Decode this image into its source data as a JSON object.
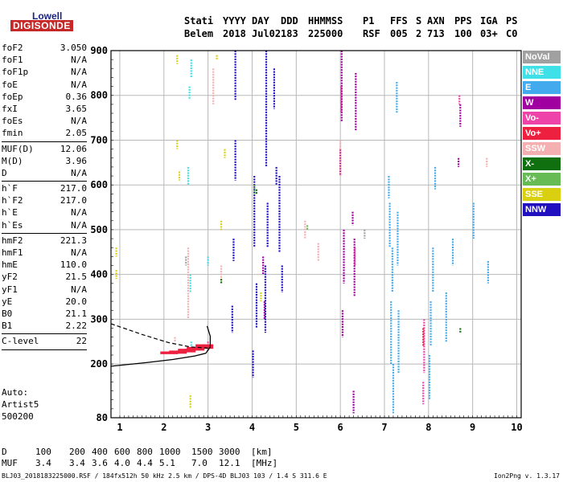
{
  "logo": {
    "line1": "Lowell",
    "line2": "DIGISONDE"
  },
  "header": {
    "labels": [
      "Stati",
      "YYYY",
      "DAY",
      "DDD",
      "HHMMSS",
      "P1",
      "FFS",
      "S",
      "AXN",
      "PPS",
      "IGA",
      "PS"
    ],
    "values": [
      "Belem",
      "2018",
      "Jul02",
      "183",
      "225000",
      "RSF",
      "005",
      "2",
      "713",
      "100",
      "03+",
      "C0"
    ]
  },
  "params": [
    {
      "name": "foF2",
      "value": "3.050"
    },
    {
      "name": "foF1",
      "value": "N/A"
    },
    {
      "name": "foF1p",
      "value": "N/A"
    },
    {
      "name": "foE",
      "value": "N/A"
    },
    {
      "name": "foEp",
      "value": "0.36"
    },
    {
      "name": "fxI",
      "value": "3.65"
    },
    {
      "name": "foEs",
      "value": "N/A"
    },
    {
      "name": "fmin",
      "value": "2.05"
    },
    {
      "sep": true
    },
    {
      "name": "MUF(D)",
      "value": "12.06"
    },
    {
      "name": "M(D)",
      "value": "3.96"
    },
    {
      "name": "D",
      "value": "N/A"
    },
    {
      "sep": true
    },
    {
      "name": "h`F",
      "value": "217.0"
    },
    {
      "name": "h`F2",
      "value": "217.0"
    },
    {
      "name": "h`E",
      "value": "N/A"
    },
    {
      "name": "h`Es",
      "value": "N/A"
    },
    {
      "sep": true
    },
    {
      "name": "hmF2",
      "value": "221.3"
    },
    {
      "name": "hmF1",
      "value": "N/A"
    },
    {
      "name": "hmE",
      "value": "110.0"
    },
    {
      "name": "yF2",
      "value": "21.5"
    },
    {
      "name": "yF1",
      "value": "N/A"
    },
    {
      "name": "yE",
      "value": "20.0"
    },
    {
      "name": "B0",
      "value": "21.1"
    },
    {
      "name": "B1",
      "value": "2.22"
    },
    {
      "sep": true
    },
    {
      "name": "C-level",
      "value": "22"
    },
    {
      "sep": true
    }
  ],
  "auto": {
    "line1": "Auto:",
    "line2": "Artist5",
    "line3": "500200"
  },
  "legend": [
    {
      "label": "NoVal",
      "color": "#a0a0a0"
    },
    {
      "label": "NNE",
      "color": "#40e0e8"
    },
    {
      "label": "E",
      "color": "#44aaee"
    },
    {
      "label": "W",
      "color": "#a000a0"
    },
    {
      "label": "Vo-",
      "color": "#ee44aa"
    },
    {
      "label": "Vo+",
      "color": "#ee2040"
    },
    {
      "label": "SSW",
      "color": "#f4b0b0"
    },
    {
      "label": "X-",
      "color": "#107010"
    },
    {
      "label": "X+",
      "color": "#66bb55"
    },
    {
      "label": "SSE",
      "color": "#d8d010"
    },
    {
      "label": "NNW",
      "color": "#2010c0"
    }
  ],
  "muf_table": {
    "d_label": "D",
    "d_values": [
      "100",
      "200",
      "400",
      "600",
      "800",
      "1000",
      "1500",
      "3000"
    ],
    "d_unit": "[km]",
    "muf_label": "MUF",
    "muf_values": [
      "3.4",
      "3.4",
      "3.6",
      "4.0",
      "4.4",
      "5.1",
      "7.0",
      "12.1"
    ],
    "muf_unit": "[MHz]"
  },
  "footer": "BLJ03_2018183225000.RSF / 184fx512h 50 kHz 2.5 km / DPS-4D BLJ03 103 / 1.4 S 311.6 E",
  "version": "Ion2Png v. 1.3.17",
  "chart_data": {
    "type": "scatter",
    "xlabel": "",
    "ylabel": "",
    "xlim": [
      0.8,
      10.1
    ],
    "ylim": [
      80,
      900
    ],
    "xticks": [
      1,
      2,
      3,
      4,
      5,
      6,
      7,
      8,
      9,
      10
    ],
    "yticks": [
      80,
      200,
      300,
      400,
      500,
      600,
      700,
      800,
      900
    ],
    "grid": true,
    "legend_position": "right",
    "traces": [
      {
        "legend": "NNW",
        "color": "#2010c0",
        "segments": [
          [
            3.62,
            790,
            900
          ],
          [
            3.62,
            610,
            700
          ],
          [
            3.58,
            430,
            480
          ],
          [
            3.55,
            270,
            330
          ],
          [
            4.05,
            460,
            620
          ],
          [
            4.1,
            280,
            380
          ],
          [
            4.02,
            170,
            230
          ],
          [
            4.32,
            640,
            900
          ],
          [
            4.35,
            460,
            560
          ],
          [
            4.3,
            270,
            420
          ],
          [
            4.62,
            450,
            620
          ],
          [
            4.68,
            360,
            420
          ],
          [
            4.5,
            770,
            860
          ],
          [
            4.55,
            600,
            640
          ]
        ]
      },
      {
        "legend": "W",
        "color": "#a000a0",
        "segments": [
          [
            6.03,
            740,
            900
          ],
          [
            6.0,
            620,
            680
          ],
          [
            6.08,
            380,
            500
          ],
          [
            6.05,
            260,
            320
          ],
          [
            6.35,
            720,
            850
          ],
          [
            6.32,
            350,
            480
          ],
          [
            6.3,
            90,
            140
          ],
          [
            6.28,
            510,
            540
          ],
          [
            4.25,
            400,
            440
          ],
          [
            4.28,
            300,
            340
          ],
          [
            8.72,
            730,
            780
          ],
          [
            8.68,
            640,
            660
          ]
        ]
      },
      {
        "legend": "E",
        "color": "#44aaee",
        "segments": [
          [
            7.12,
            460,
            560
          ],
          [
            7.18,
            360,
            460
          ],
          [
            7.15,
            200,
            340
          ],
          [
            7.2,
            90,
            200
          ],
          [
            7.3,
            420,
            540
          ],
          [
            7.32,
            180,
            320
          ],
          [
            7.1,
            570,
            620
          ],
          [
            7.28,
            760,
            830
          ],
          [
            8.1,
            360,
            460
          ],
          [
            8.05,
            240,
            340
          ],
          [
            8.02,
            120,
            220
          ],
          [
            8.15,
            590,
            640
          ],
          [
            8.4,
            250,
            360
          ],
          [
            8.55,
            420,
            480
          ],
          [
            9.35,
            380,
            430
          ],
          [
            9.02,
            480,
            560
          ]
        ]
      },
      {
        "legend": "Vo-",
        "color": "#ee44aa",
        "segments": [
          [
            7.9,
            180,
            300
          ],
          [
            7.88,
            110,
            160
          ],
          [
            6.02,
            760,
            820
          ],
          [
            6.33,
            420,
            460
          ],
          [
            8.7,
            780,
            800
          ],
          [
            3.0,
            230,
            250
          ]
        ]
      },
      {
        "legend": "Vo+",
        "color": "#ee2040",
        "segments": [
          [
            2.1,
            222,
            228
          ],
          [
            2.3,
            223,
            230
          ],
          [
            2.5,
            226,
            234
          ],
          [
            2.7,
            230,
            238
          ],
          [
            2.9,
            234,
            244
          ],
          [
            7.88,
            240,
            280
          ]
        ]
      },
      {
        "legend": "SSW",
        "color": "#f4b0b0",
        "segments": [
          [
            2.55,
            300,
            460
          ],
          [
            3.12,
            780,
            860
          ],
          [
            3.3,
            380,
            420
          ],
          [
            5.2,
            480,
            520
          ],
          [
            5.5,
            430,
            470
          ],
          [
            9.32,
            640,
            660
          ],
          [
            6.0,
            620,
            700
          ],
          [
            2.25,
            250,
            260
          ]
        ]
      },
      {
        "legend": "NNE",
        "color": "#40e0e8",
        "segments": [
          [
            2.62,
            840,
            880
          ],
          [
            2.58,
            790,
            820
          ],
          [
            2.55,
            600,
            640
          ],
          [
            2.6,
            360,
            400
          ],
          [
            3.0,
            420,
            440
          ],
          [
            2.62,
            230,
            250
          ]
        ]
      },
      {
        "legend": "SSE",
        "color": "#d8d010",
        "segments": [
          [
            2.3,
            870,
            890
          ],
          [
            2.35,
            610,
            630
          ],
          [
            2.3,
            680,
            700
          ],
          [
            0.92,
            440,
            460
          ],
          [
            0.92,
            390,
            410
          ],
          [
            3.38,
            660,
            680
          ],
          [
            2.6,
            100,
            130
          ],
          [
            3.2,
            880,
            890
          ],
          [
            3.3,
            500,
            520
          ],
          [
            4.2,
            340,
            360
          ]
        ]
      },
      {
        "legend": "X-",
        "color": "#107010",
        "segments": [
          [
            4.1,
            580,
            590
          ],
          [
            8.72,
            270,
            280
          ],
          [
            3.3,
            380,
            390
          ]
        ]
      },
      {
        "legend": "X+",
        "color": "#66bb55",
        "segments": [
          [
            4.05,
            580,
            600
          ],
          [
            5.25,
            500,
            510
          ]
        ]
      },
      {
        "legend": "NoVal",
        "color": "#a0a0a0",
        "segments": [
          [
            6.55,
            480,
            500
          ],
          [
            2.5,
            420,
            440
          ]
        ]
      }
    ],
    "profile_solid": [
      [
        0.8,
        195
      ],
      [
        1.6,
        203
      ],
      [
        2.2,
        210
      ],
      [
        2.7,
        218
      ],
      [
        2.95,
        224
      ],
      [
        3.05,
        238
      ],
      [
        3.05,
        262
      ],
      [
        2.98,
        285
      ]
    ],
    "profile_dashed": [
      [
        0.8,
        290
      ],
      [
        1.5,
        266
      ],
      [
        2.1,
        248
      ],
      [
        2.6,
        238
      ],
      [
        2.95,
        236
      ],
      [
        3.05,
        234
      ]
    ]
  }
}
